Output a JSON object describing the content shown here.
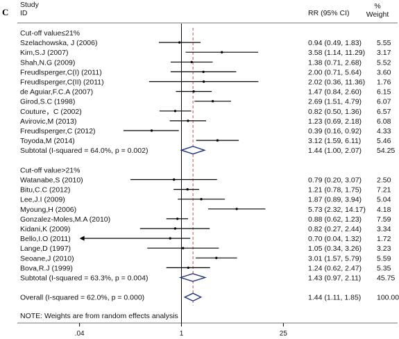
{
  "panel_letter": "C",
  "header": {
    "study_line1": "Study",
    "study_line2": "ID",
    "rr_label": "RR (95% CI)",
    "weight_line1": "%",
    "weight_line2": "Weight"
  },
  "note": "NOTE: Weights are from random effects analysis",
  "chart_data": {
    "type": "forest",
    "x_scale": "log",
    "x_ticks": [
      ".04",
      "1",
      "25"
    ],
    "x_tick_values": [
      0.04,
      1,
      25
    ],
    "x_range": [
      0.02,
      50
    ],
    "null_line": 1,
    "overall_line": 1.44,
    "rows": [
      {
        "kind": "group",
        "label": "Cut-off value≤21%"
      },
      {
        "kind": "study",
        "label": "Szelachowska, J (2006)",
        "rr": 0.94,
        "lo": 0.49,
        "hi": 1.83,
        "ci_text": "0.94 (0.49, 1.83)",
        "weight": "5.55"
      },
      {
        "kind": "study",
        "label": "Kim,S.J (2007)",
        "rr": 3.58,
        "lo": 1.14,
        "hi": 11.29,
        "ci_text": "3.58 (1.14, 11.29)",
        "weight": "3.17"
      },
      {
        "kind": "study",
        "label": "Shah,N.G (2009)",
        "rr": 1.38,
        "lo": 0.71,
        "hi": 2.68,
        "ci_text": "1.38 (0.71, 2.68)",
        "weight": "5.52"
      },
      {
        "kind": "study",
        "label": "Freudlsperger,C(I) (2011)",
        "rr": 2.0,
        "lo": 0.71,
        "hi": 5.64,
        "ci_text": "2.00 (0.71, 5.64)",
        "weight": "3.60"
      },
      {
        "kind": "study",
        "label": "Freudlsperger,C(II) (2011)",
        "rr": 2.02,
        "lo": 0.36,
        "hi": 11.36,
        "ci_text": "2.02 (0.36, 11.36)",
        "weight": "1.76"
      },
      {
        "kind": "study",
        "label": "de Aguiar,F.C.A (2007)",
        "rr": 1.47,
        "lo": 0.84,
        "hi": 2.6,
        "ci_text": "1.47 (0.84, 2.60)",
        "weight": "6.15"
      },
      {
        "kind": "study",
        "label": "Girod,S.C (1998)",
        "rr": 2.69,
        "lo": 1.51,
        "hi": 4.79,
        "ci_text": "2.69 (1.51, 4.79)",
        "weight": "6.07"
      },
      {
        "kind": "study",
        "label": "Couture，C (2002)",
        "rr": 0.82,
        "lo": 0.5,
        "hi": 1.36,
        "ci_text": "0.82 (0.50, 1.36)",
        "weight": "6.57"
      },
      {
        "kind": "study",
        "label": "Avirovic,M (2013)",
        "rr": 1.23,
        "lo": 0.69,
        "hi": 2.18,
        "ci_text": "1.23 (0.69, 2.18)",
        "weight": "6.08"
      },
      {
        "kind": "study",
        "label": "Freudlsperger,C (2012)",
        "rr": 0.39,
        "lo": 0.16,
        "hi": 0.92,
        "ci_text": "0.39 (0.16, 0.92)",
        "weight": "4.33"
      },
      {
        "kind": "study",
        "label": "Toyoda,M (2014)",
        "rr": 3.12,
        "lo": 1.59,
        "hi": 6.11,
        "ci_text": "3.12 (1.59, 6.11)",
        "weight": "5.46"
      },
      {
        "kind": "subtotal",
        "label": "Subtotal  (I-squared = 64.0%, p = 0.002)",
        "rr": 1.44,
        "lo": 1.0,
        "hi": 2.07,
        "ci_text": "1.44 (1.00, 2.07)",
        "weight": "54.25"
      },
      {
        "kind": "blank"
      },
      {
        "kind": "group",
        "label": "Cut-off value>21%"
      },
      {
        "kind": "study",
        "label": "Watanabe,S (2010)",
        "rr": 0.79,
        "lo": 0.2,
        "hi": 3.07,
        "ci_text": "0.79 (0.20, 3.07)",
        "weight": "2.50"
      },
      {
        "kind": "study",
        "label": "Bitu,C.C (2012)",
        "rr": 1.21,
        "lo": 0.78,
        "hi": 1.75,
        "ci_text": "1.21 (0.78, 1.75)",
        "weight": "7.21"
      },
      {
        "kind": "study",
        "label": "Lee,J.I (2009)",
        "rr": 1.87,
        "lo": 0.89,
        "hi": 3.94,
        "ci_text": "1.87 (0.89, 3.94)",
        "weight": "5.04"
      },
      {
        "kind": "study",
        "label": "Myoung,H (2006)",
        "rr": 5.73,
        "lo": 2.32,
        "hi": 14.17,
        "ci_text": "5.73 (2.32, 14.17)",
        "weight": "4.18"
      },
      {
        "kind": "study",
        "label": "Gonzalez-Moles,M.A (2010)",
        "rr": 0.88,
        "lo": 0.62,
        "hi": 1.23,
        "ci_text": "0.88 (0.62, 1.23)",
        "weight": "7.59"
      },
      {
        "kind": "study",
        "label": "Kidani,K (2009)",
        "rr": 0.82,
        "lo": 0.27,
        "hi": 2.44,
        "ci_text": "0.82 (0.27, 2.44)",
        "weight": "3.34"
      },
      {
        "kind": "study",
        "label": "Bello,I.O (2011)",
        "rr": 0.7,
        "lo": 0.04,
        "hi": 1.32,
        "ci_text": "0.70 (0.04, 1.32)",
        "weight": "1.72",
        "arrow_left": true
      },
      {
        "kind": "study",
        "label": "Lange,D (1997)",
        "rr": 1.05,
        "lo": 0.34,
        "hi": 3.26,
        "ci_text": "1.05 (0.34, 3.26)",
        "weight": "3.23"
      },
      {
        "kind": "study",
        "label": "Seoane,J (2010)",
        "rr": 3.01,
        "lo": 1.57,
        "hi": 5.79,
        "ci_text": "3.01 (1.57, 5.79)",
        "weight": "5.59"
      },
      {
        "kind": "study",
        "label": "Bova,R.J (1999)",
        "rr": 1.24,
        "lo": 0.62,
        "hi": 2.47,
        "ci_text": "1.24 (0.62, 2.47)",
        "weight": "5.35"
      },
      {
        "kind": "subtotal",
        "label": "Subtotal  (I-squared = 63.3%, p = 0.004)",
        "rr": 1.43,
        "lo": 0.97,
        "hi": 2.11,
        "ci_text": "1.43 (0.97, 2.11)",
        "weight": "45.75"
      },
      {
        "kind": "blank"
      },
      {
        "kind": "overall",
        "label": "Overall  (I-squared = 62.0%, p = 0.000)",
        "rr": 1.44,
        "lo": 1.11,
        "hi": 1.85,
        "ci_text": "1.44 (1.11, 1.85)",
        "weight": "100.00"
      }
    ]
  }
}
